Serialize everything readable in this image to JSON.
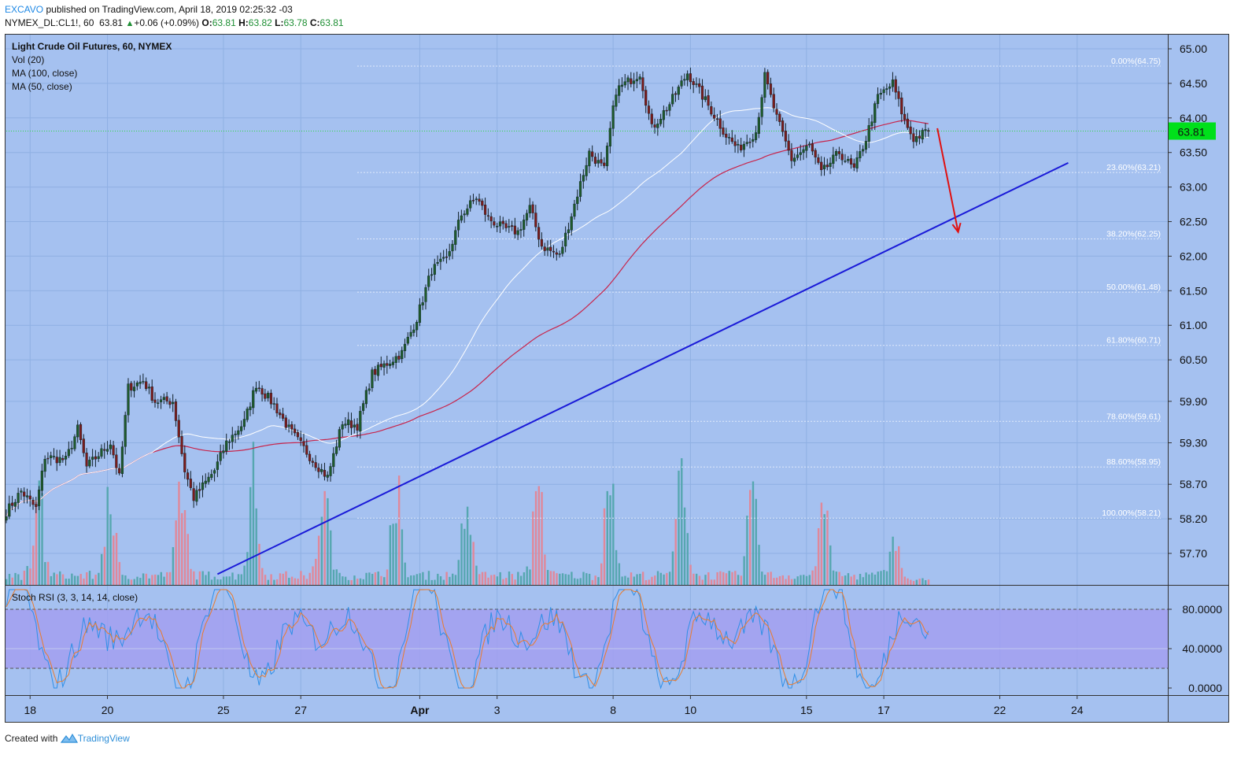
{
  "header": {
    "publisher": "EXCAVO",
    "published_text": "published on TradingView.com, April 18, 2019 02:25:32 -03",
    "symbol": "NYMEX_DL:CL1!, 60",
    "last": "63.81",
    "change_arrow": "▲",
    "change": "+0.06 (+0.09%)",
    "o_label": "O:",
    "o": "63.81",
    "h_label": "H:",
    "h": "63.82",
    "l_label": "L:",
    "l": "63.78",
    "c_label": "C:",
    "c": "63.81"
  },
  "legend": {
    "title": "Light Crude Oil Futures, 60, NYMEX",
    "vol": "Vol (20)",
    "ma100": "MA (100, close)",
    "ma50": "MA (50, close)",
    "stoch": "Stoch RSI (3, 3, 14, 14, close)"
  },
  "price_badge": "63.81",
  "footer": {
    "created": "Created with",
    "brand": "TradingView",
    "icon": "tradingview-logo-icon"
  },
  "colors": {
    "pane_bg": "#a5c1f0",
    "rsi_band": "#a29ff0",
    "candle_up": "#1e5a2c",
    "candle_down": "#7a1c1c",
    "vol_up": "#56a7b0",
    "vol_down": "#e0889a",
    "ma100": "#c8244b",
    "ma50": "#ffffff",
    "trendline": "#1a1ad8",
    "arrow": "#e01010",
    "badge": "#00e01b",
    "k_line": "#2f8fe6",
    "d_line": "#ea7b2c"
  },
  "chart_data": [
    {
      "type": "candlestick",
      "title": "Light Crude Oil Futures, 60, NYMEX",
      "x_ticks": [
        "18",
        "20",
        "25",
        "27",
        "Apr",
        "3",
        "8",
        "10",
        "15",
        "17",
        "22",
        "24"
      ],
      "y_ticks": [
        "65.00",
        "64.50",
        "64.00",
        "63.50",
        "63.00",
        "62.50",
        "62.00",
        "61.50",
        "61.00",
        "60.50",
        "59.90",
        "59.30",
        "58.70",
        "58.20",
        "57.70"
      ],
      "ylim": [
        57.4,
        65.2
      ],
      "last_price": 63.81,
      "anchors": [
        {
          "t": 0,
          "p": 58.3
        },
        {
          "t": 5,
          "p": 58.6
        },
        {
          "t": 10,
          "p": 58.35
        },
        {
          "t": 13,
          "p": 59.1
        },
        {
          "t": 20,
          "p": 59.05
        },
        {
          "t": 24,
          "p": 59.5
        },
        {
          "t": 27,
          "p": 58.95
        },
        {
          "t": 35,
          "p": 59.3
        },
        {
          "t": 38,
          "p": 58.8
        },
        {
          "t": 41,
          "p": 60.1
        },
        {
          "t": 46,
          "p": 60.2
        },
        {
          "t": 50,
          "p": 59.9
        },
        {
          "t": 56,
          "p": 59.9
        },
        {
          "t": 60,
          "p": 58.9
        },
        {
          "t": 63,
          "p": 58.5
        },
        {
          "t": 70,
          "p": 58.9
        },
        {
          "t": 74,
          "p": 59.3
        },
        {
          "t": 80,
          "p": 59.6
        },
        {
          "t": 84,
          "p": 60.15
        },
        {
          "t": 90,
          "p": 59.85
        },
        {
          "t": 95,
          "p": 59.5
        },
        {
          "t": 103,
          "p": 59.05
        },
        {
          "t": 108,
          "p": 58.8
        },
        {
          "t": 113,
          "p": 59.6
        },
        {
          "t": 118,
          "p": 59.55
        },
        {
          "t": 123,
          "p": 60.3
        },
        {
          "t": 133,
          "p": 60.6
        },
        {
          "t": 138,
          "p": 61.1
        },
        {
          "t": 143,
          "p": 61.8
        },
        {
          "t": 148,
          "p": 61.95
        },
        {
          "t": 153,
          "p": 62.6
        },
        {
          "t": 158,
          "p": 62.85
        },
        {
          "t": 162,
          "p": 62.55
        },
        {
          "t": 167,
          "p": 62.4
        },
        {
          "t": 172,
          "p": 62.35
        },
        {
          "t": 176,
          "p": 62.7
        },
        {
          "t": 180,
          "p": 62.15
        },
        {
          "t": 186,
          "p": 62.0
        },
        {
          "t": 190,
          "p": 62.6
        },
        {
          "t": 196,
          "p": 63.5
        },
        {
          "t": 201,
          "p": 63.25
        },
        {
          "t": 205,
          "p": 64.4
        },
        {
          "t": 213,
          "p": 64.65
        },
        {
          "t": 217,
          "p": 63.85
        },
        {
          "t": 223,
          "p": 64.2
        },
        {
          "t": 229,
          "p": 64.65
        },
        {
          "t": 235,
          "p": 64.25
        },
        {
          "t": 242,
          "p": 63.75
        },
        {
          "t": 246,
          "p": 63.55
        },
        {
          "t": 252,
          "p": 63.8
        },
        {
          "t": 255,
          "p": 64.6
        },
        {
          "t": 259,
          "p": 64.0
        },
        {
          "t": 264,
          "p": 63.4
        },
        {
          "t": 270,
          "p": 63.6
        },
        {
          "t": 274,
          "p": 63.2
        },
        {
          "t": 280,
          "p": 63.5
        },
        {
          "t": 285,
          "p": 63.25
        },
        {
          "t": 289,
          "p": 63.7
        },
        {
          "t": 293,
          "p": 64.3
        },
        {
          "t": 298,
          "p": 64.5
        },
        {
          "t": 302,
          "p": 63.95
        },
        {
          "t": 305,
          "p": 63.7
        },
        {
          "t": 310,
          "p": 63.81
        }
      ],
      "fibonacci": [
        {
          "label": "0.00%(64.75)",
          "price": 64.75
        },
        {
          "label": "23.60%(63.21)",
          "price": 63.21
        },
        {
          "label": "38.20%(62.25)",
          "price": 62.25
        },
        {
          "label": "50.00%(61.48)",
          "price": 61.48
        },
        {
          "label": "61.80%(60.71)",
          "price": 60.71
        },
        {
          "label": "78.60%(59.61)",
          "price": 59.61
        },
        {
          "label": "88.60%(58.95)",
          "price": 58.95
        },
        {
          "label": "100.00%(58.21)",
          "price": 58.21
        }
      ],
      "trendline": {
        "from": {
          "t": 71,
          "p": 57.4
        },
        "to": {
          "t": 357,
          "p": 63.35
        }
      },
      "projection_arrow": {
        "from": {
          "t": 313,
          "p": 63.85
        },
        "to": {
          "t": 320,
          "p": 62.35
        }
      },
      "moving_averages": [
        "MA (100, close)",
        "MA (50, close)"
      ],
      "volume": "Vol (20)"
    },
    {
      "type": "line",
      "title": "Stoch RSI (3, 3, 14, 14, close)",
      "y_ticks": [
        "80.0000",
        "40.0000",
        "0.0000"
      ],
      "ylim": [
        0,
        100
      ],
      "bands": [
        20,
        80
      ],
      "series": [
        {
          "name": "K"
        },
        {
          "name": "D"
        }
      ]
    }
  ]
}
